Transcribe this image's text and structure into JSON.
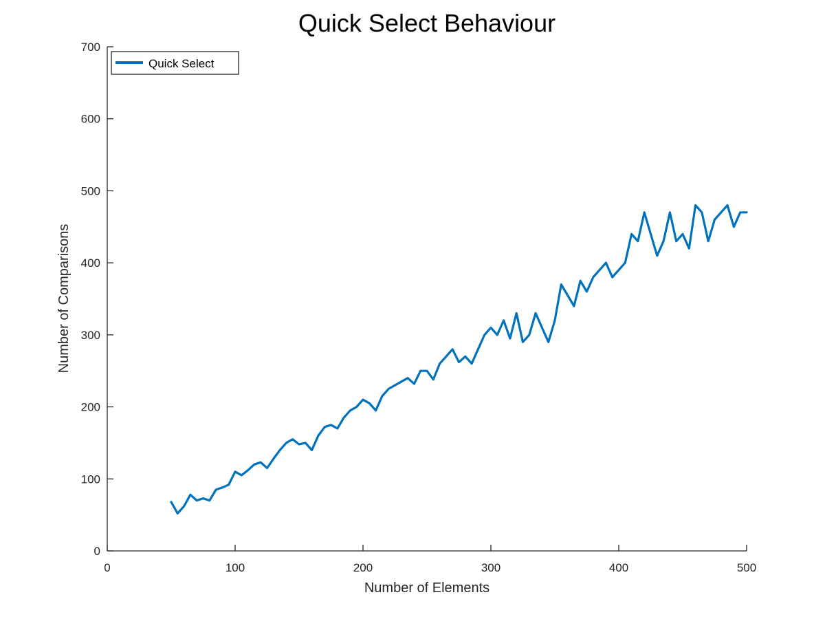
{
  "chart_data": {
    "type": "line",
    "title": "Quick Select Behaviour",
    "xlabel": "Number of Elements",
    "ylabel": "Number of Comparisons",
    "xlim": [
      0,
      500
    ],
    "ylim": [
      0,
      700
    ],
    "xticks": [
      "0",
      "100",
      "200",
      "300",
      "400",
      "500"
    ],
    "yticks": [
      "0",
      "100",
      "200",
      "300",
      "400",
      "500",
      "600",
      "700"
    ],
    "grid": false,
    "legend_position": "top-left",
    "series": [
      {
        "name": "Quick Select",
        "color": "#0072BD",
        "x": [
          50,
          55,
          60,
          65,
          70,
          75,
          80,
          85,
          90,
          95,
          100,
          105,
          110,
          115,
          120,
          125,
          130,
          135,
          140,
          145,
          150,
          155,
          160,
          165,
          170,
          175,
          180,
          185,
          190,
          195,
          200,
          205,
          210,
          215,
          220,
          225,
          230,
          235,
          240,
          245,
          250,
          255,
          260,
          265,
          270,
          275,
          280,
          285,
          290,
          295,
          300,
          305,
          310,
          315,
          320,
          325,
          330,
          335,
          340,
          345,
          350,
          355,
          360,
          365,
          370,
          375,
          380,
          385,
          390,
          395,
          400,
          405,
          410,
          415,
          420,
          425,
          430,
          435,
          440,
          445,
          450,
          455,
          460,
          465,
          470,
          475,
          480,
          485,
          490,
          495,
          500
        ],
        "y": [
          68,
          52,
          62,
          78,
          70,
          73,
          70,
          85,
          88,
          92,
          110,
          105,
          112,
          120,
          123,
          115,
          128,
          140,
          150,
          155,
          148,
          150,
          140,
          160,
          172,
          175,
          170,
          185,
          195,
          200,
          210,
          205,
          195,
          215,
          225,
          230,
          235,
          240,
          232,
          250,
          250,
          238,
          260,
          270,
          280,
          262,
          270,
          260,
          280,
          300,
          310,
          300,
          320,
          295,
          330,
          290,
          300,
          330,
          310,
          290,
          320,
          370,
          355,
          340,
          375,
          360,
          380,
          390,
          400,
          380,
          390,
          400,
          440,
          430,
          470,
          440,
          410,
          430,
          470,
          430,
          440,
          420,
          480,
          470,
          430,
          460,
          470,
          480,
          450,
          470,
          470
        ]
      }
    ]
  }
}
